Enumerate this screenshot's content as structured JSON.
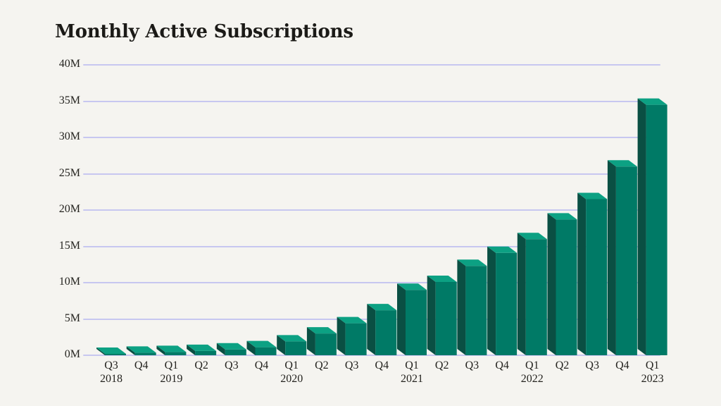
{
  "title": "Monthly Active Subscriptions",
  "chart_data": {
    "type": "bar",
    "title": "Monthly Active Subscriptions",
    "unit": "millions of subscriptions",
    "bar_style": "3d-column",
    "grid": true,
    "legend": "none",
    "ylim": [
      0,
      40
    ],
    "y_ticks": [
      "0M",
      "5M",
      "10M",
      "15M",
      "20M",
      "25M",
      "30M",
      "35M",
      "40M"
    ],
    "categories": [
      "Q3 2018",
      "Q4 2018",
      "Q1 2019",
      "Q2 2019",
      "Q3 2019",
      "Q4 2019",
      "Q1 2020",
      "Q2 2020",
      "Q3 2020",
      "Q4 2020",
      "Q1 2021",
      "Q2 2021",
      "Q3 2021",
      "Q4 2021",
      "Q1 2022",
      "Q2 2022",
      "Q3 2022",
      "Q4 2022",
      "Q1 2023"
    ],
    "x_tick_labels": [
      "Q3",
      "Q4",
      "Q1",
      "Q2",
      "Q3",
      "Q4",
      "Q1",
      "Q2",
      "Q3",
      "Q4",
      "Q1",
      "Q2",
      "Q3",
      "Q4",
      "Q1",
      "Q2",
      "Q3",
      "Q4",
      "Q1"
    ],
    "year_labels": [
      {
        "index": 0,
        "label": "2018"
      },
      {
        "index": 2,
        "label": "2019"
      },
      {
        "index": 6,
        "label": "2020"
      },
      {
        "index": 10,
        "label": "2021"
      },
      {
        "index": 14,
        "label": "2022"
      },
      {
        "index": 18,
        "label": "2023"
      }
    ],
    "values": [
      0.2,
      0.35,
      0.45,
      0.6,
      0.8,
      1.1,
      1.9,
      3.0,
      4.4,
      6.2,
      9.0,
      10.1,
      12.3,
      14.1,
      16.0,
      18.7,
      21.5,
      26.0,
      34.5
    ],
    "colors": {
      "bar_front": "#007a66",
      "bar_top": "#0ca183",
      "bar_side": "#0a4f43",
      "gridline": "#c7c7f0",
      "background": "#f5f4f0",
      "text": "#24231f",
      "title_text": "#1b1a17"
    }
  }
}
